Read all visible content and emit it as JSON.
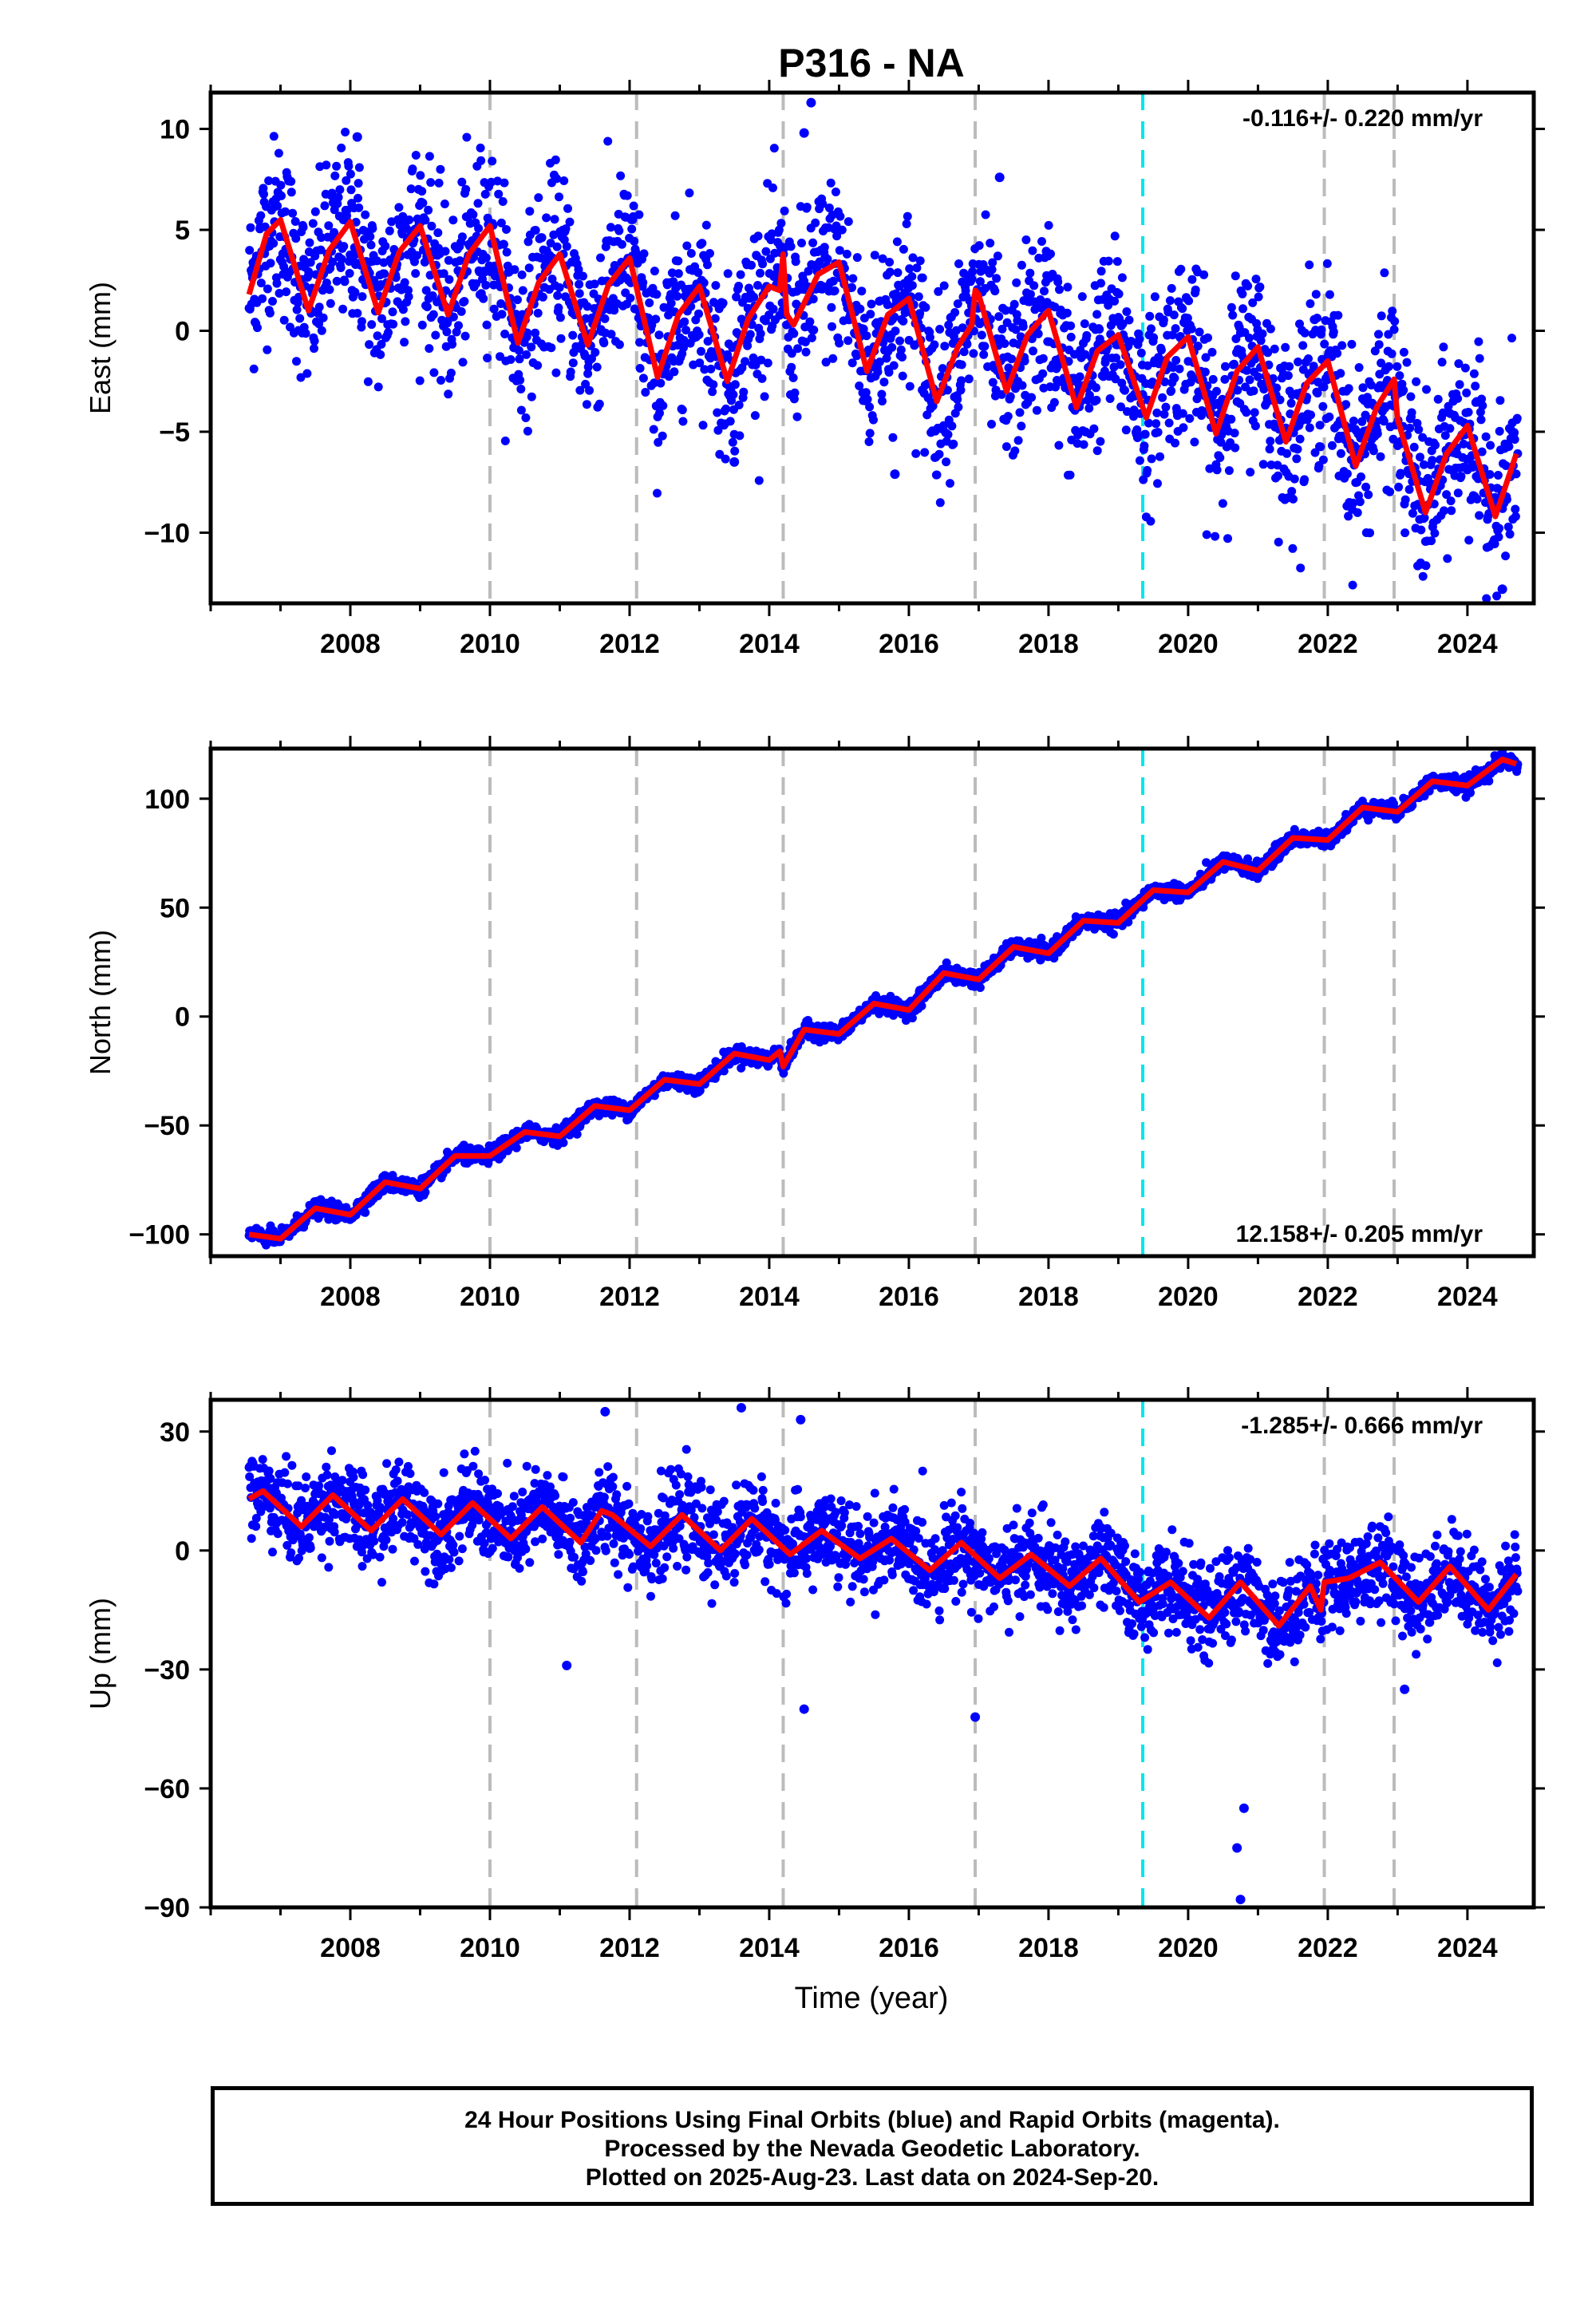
{
  "title": "P316 - NA",
  "xlabel": "Time (year)",
  "footer": {
    "line1": "24 Hour Positions Using Final Orbits (blue) and Rapid Orbits (magenta).",
    "line2": "Processed by the Nevada Geodetic Laboratory.",
    "line3": "Plotted on 2025-Aug-23. Last data on 2024-Sep-20."
  },
  "colors": {
    "points": "#0000ff",
    "model": "#ff0000",
    "equipment_change": "#bbbbbb",
    "antenna_change": "#00e5ee"
  },
  "chart_data": [
    {
      "type": "scatter",
      "component": "east",
      "ylabel": "East (mm)",
      "rate_label": "-0.116+/- 0.220 mm/yr",
      "rate_position": "top-right",
      "xlim": [
        2006.0,
        2024.95
      ],
      "ylim": [
        -13.5,
        11.8
      ],
      "yticks": [
        -10,
        -5,
        0,
        5,
        10
      ],
      "xticks": [
        2008,
        2010,
        2012,
        2014,
        2016,
        2018,
        2020,
        2022,
        2024
      ],
      "grid": false,
      "model_series": {
        "x": [
          2006.55,
          2006.8,
          2007.0,
          2007.4,
          2007.7,
          2008.0,
          2008.4,
          2008.7,
          2009.0,
          2009.4,
          2009.7,
          2010.0,
          2010.4,
          2010.7,
          2011.0,
          2011.4,
          2011.7,
          2012.0,
          2012.4,
          2012.7,
          2013.0,
          2013.4,
          2013.7,
          2014.0,
          2014.15,
          2014.2,
          2014.25,
          2014.35,
          2014.7,
          2015.0,
          2015.4,
          2015.7,
          2016.0,
          2016.4,
          2016.7,
          2016.9,
          2016.95,
          2017.0,
          2017.4,
          2017.7,
          2018.0,
          2018.4,
          2018.7,
          2019.0,
          2019.4,
          2019.7,
          2020.0,
          2020.4,
          2020.7,
          2021.0,
          2021.4,
          2021.7,
          2022.0,
          2022.4,
          2022.7,
          2022.95,
          2023.0,
          2023.4,
          2023.7,
          2024.0,
          2024.4,
          2024.7
        ],
        "y": [
          1.8,
          4.8,
          5.5,
          1.0,
          4.0,
          5.4,
          0.9,
          3.9,
          5.2,
          0.8,
          3.8,
          5.2,
          -0.6,
          2.4,
          3.8,
          -0.7,
          2.3,
          3.6,
          -2.3,
          0.8,
          2.2,
          -2.5,
          0.6,
          2.2,
          2.0,
          3.8,
          0.8,
          0.3,
          2.8,
          3.4,
          -2.0,
          0.8,
          1.6,
          -3.5,
          -0.8,
          0.3,
          2.0,
          1.8,
          -3.0,
          -0.2,
          1.0,
          -3.8,
          -1.0,
          -0.2,
          -4.3,
          -1.3,
          -0.3,
          -5.1,
          -2.0,
          -0.8,
          -5.5,
          -2.6,
          -1.5,
          -6.7,
          -3.8,
          -2.4,
          -4.4,
          -9.0,
          -6.1,
          -4.7,
          -9.2,
          -6.1
        ]
      },
      "observations": {
        "span": [
          2006.55,
          2024.72
        ],
        "scatter_mm": 2.2,
        "outliers": [
          [
            2014.6,
            11.3
          ],
          [
            2014.5,
            9.8
          ],
          [
            2008.1,
            9.6
          ],
          [
            2017.3,
            7.6
          ],
          [
            2015.8,
            -7.1
          ],
          [
            2024.5,
            -12.8
          ],
          [
            2013.5,
            -6.5
          ]
        ]
      },
      "equipment_changes": [
        2010.0,
        2012.1,
        2014.2,
        2016.95,
        2021.95,
        2022.95
      ],
      "antenna_changes": [
        2019.35
      ]
    },
    {
      "type": "scatter",
      "component": "north",
      "ylabel": "North (mm)",
      "rate_label": "12.158+/- 0.205 mm/yr",
      "rate_position": "bottom-right",
      "xlim": [
        2006.0,
        2024.95
      ],
      "ylim": [
        -110,
        123
      ],
      "yticks": [
        -100,
        -50,
        0,
        50,
        100
      ],
      "xticks": [
        2008,
        2010,
        2012,
        2014,
        2016,
        2018,
        2020,
        2022,
        2024
      ],
      "grid": false,
      "model_series": {
        "x": [
          2006.55,
          2007.0,
          2007.5,
          2008.0,
          2008.5,
          2009.0,
          2009.5,
          2010.0,
          2010.5,
          2011.0,
          2011.5,
          2012.0,
          2012.5,
          2013.0,
          2013.5,
          2014.0,
          2014.15,
          2014.2,
          2014.5,
          2015.0,
          2015.5,
          2016.0,
          2016.5,
          2017.0,
          2017.5,
          2018.0,
          2018.5,
          2019.0,
          2019.5,
          2020.0,
          2020.5,
          2021.0,
          2021.5,
          2022.0,
          2022.5,
          2023.0,
          2023.5,
          2024.0,
          2024.5,
          2024.7
        ],
        "y": [
          -100,
          -102,
          -88,
          -91,
          -76,
          -79,
          -64,
          -64,
          -53,
          -55,
          -41,
          -43,
          -29,
          -31,
          -17,
          -20,
          -16,
          -23,
          -6,
          -8,
          6,
          3,
          20,
          17,
          32,
          29,
          44,
          43,
          58,
          57,
          71,
          67,
          82,
          81,
          96,
          94,
          108,
          106,
          118,
          116
        ]
      },
      "observations": {
        "span": [
          2006.55,
          2024.72
        ],
        "scatter_mm": 1.8
      },
      "equipment_changes": [
        2010.0,
        2012.1,
        2014.2,
        2016.95,
        2021.95,
        2022.95
      ],
      "antenna_changes": [
        2019.35
      ]
    },
    {
      "type": "scatter",
      "component": "up",
      "ylabel": "Up (mm)",
      "rate_label": "-1.285+/- 0.666 mm/yr",
      "rate_position": "top-right",
      "xlim": [
        2006.0,
        2024.95
      ],
      "ylim": [
        -90,
        38
      ],
      "yticks": [
        -90,
        -60,
        -30,
        0,
        30
      ],
      "xticks": [
        2008,
        2010,
        2012,
        2014,
        2016,
        2018,
        2020,
        2022,
        2024
      ],
      "grid": false,
      "model_series": {
        "x": [
          2006.55,
          2006.75,
          2007.3,
          2007.75,
          2008.3,
          2008.75,
          2009.3,
          2009.75,
          2010.3,
          2010.75,
          2011.3,
          2011.6,
          2011.75,
          2012.3,
          2012.75,
          2013.3,
          2013.75,
          2014.3,
          2014.75,
          2015.3,
          2015.75,
          2016.3,
          2016.75,
          2017.3,
          2017.75,
          2018.3,
          2018.75,
          2019.3,
          2019.75,
          2020.3,
          2020.75,
          2021.3,
          2021.75,
          2021.9,
          2021.95,
          2022.3,
          2022.75,
          2023.3,
          2023.75,
          2024.3,
          2024.7
        ],
        "y": [
          13,
          15,
          6,
          14,
          5,
          13,
          4,
          12,
          3,
          11,
          2,
          10,
          9,
          1,
          9,
          0,
          8,
          -1,
          5,
          -2,
          3,
          -5,
          2,
          -7,
          -1,
          -9,
          -2,
          -13,
          -8,
          -17,
          -8,
          -19,
          -9,
          -15,
          -8,
          -7,
          -3,
          -13,
          -4,
          -15,
          -6
        ]
      },
      "observations": {
        "span": [
          2006.55,
          2024.72
        ],
        "scatter_mm": 5.5,
        "outliers": [
          [
            2011.65,
            35
          ],
          [
            2013.6,
            36
          ],
          [
            2014.45,
            33
          ],
          [
            2011.1,
            -29
          ],
          [
            2014.5,
            -40
          ],
          [
            2016.95,
            -42
          ],
          [
            2020.75,
            -88
          ],
          [
            2020.7,
            -75
          ],
          [
            2020.8,
            -65
          ],
          [
            2023.1,
            -35
          ]
        ]
      },
      "equipment_changes": [
        2010.0,
        2012.1,
        2014.2,
        2016.95,
        2021.95,
        2022.95
      ],
      "antenna_changes": [
        2019.35
      ]
    }
  ]
}
